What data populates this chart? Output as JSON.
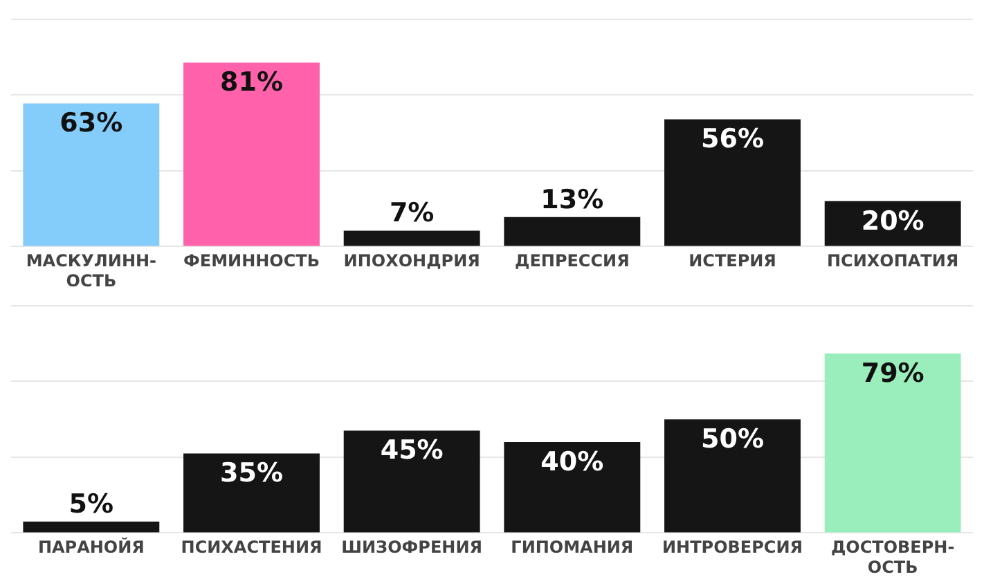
{
  "chart_data": [
    {
      "type": "bar",
      "categories": [
        "МАСКУЛИНН-ОСТЬ",
        "ФЕМИННОСТЬ",
        "ИПОХОНДРИЯ",
        "ДЕПРЕССИЯ",
        "ИСТЕРИЯ",
        "ПСИХОПАТИЯ"
      ],
      "values": [
        63,
        81,
        7,
        13,
        56,
        20
      ],
      "value_labels": [
        "63%",
        "81%",
        "7%",
        "13%",
        "56%",
        "20%"
      ],
      "colors": [
        "#84ccfa",
        "#ff62aa",
        "#151515",
        "#151515",
        "#151515",
        "#151515"
      ],
      "ylim": [
        0,
        100
      ],
      "yticks": [
        {
          "value": 0,
          "label": null
        },
        {
          "value": 33.3,
          "label": null
        },
        {
          "value": 66.7,
          "label": null
        },
        {
          "value": 100,
          "label": null
        }
      ],
      "grid": "y",
      "tick_labels": "x"
    },
    {
      "type": "bar",
      "categories": [
        "ПАРАНОЙЯ",
        "ПСИХАСТЕНИЯ",
        "ШИЗОФРЕНИЯ",
        "ГИПОМАНИЯ",
        "ИНТРОВЕРСИЯ",
        "ДОСТОВЕРН-ОСТЬ"
      ],
      "values": [
        5,
        35,
        45,
        40,
        50,
        79
      ],
      "value_labels": [
        "5%",
        "35%",
        "45%",
        "40%",
        "50%",
        "79%"
      ],
      "colors": [
        "#151515",
        "#151515",
        "#151515",
        "#151515",
        "#151515",
        "#9aeebc"
      ],
      "ylim": [
        0,
        100
      ],
      "yticks": [
        {
          "value": 0,
          "label": null
        },
        {
          "value": 33.3,
          "label": null
        },
        {
          "value": 66.7,
          "label": null
        },
        {
          "value": 100,
          "label": null
        }
      ],
      "grid": "y",
      "tick_labels": "x"
    }
  ]
}
